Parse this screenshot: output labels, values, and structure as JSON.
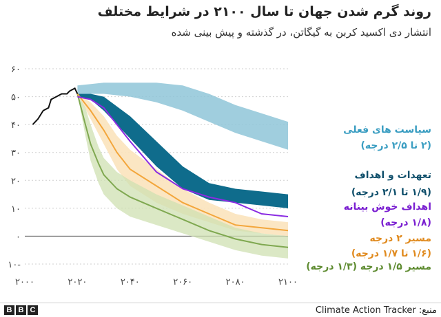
{
  "title": "روند گرم شدن جهان تا سال ۲۱۰۰ در شرایط مختلف",
  "subtitle": "انتشار دی اکسید کربن به گیگاتن، در گذشته و پیش بینی شده",
  "footer": {
    "logo": "BBC",
    "source": "Climate Action Tracker :منبع"
  },
  "colors": {
    "historical": "#111111",
    "current_policies": "#8fc6d8",
    "pledges": "#0f6c8c",
    "optimistic": "#8a2be2",
    "path_2c": "#f3a63b",
    "path_2c_band": "#fbe3bd",
    "path_15c": "#7fa850",
    "path_15c_band": "#cfe0b2"
  },
  "chart_data": {
    "type": "area",
    "title": "روند گرم شدن جهان تا سال ۲۱۰۰ در شرایط مختلف",
    "subtitle": "انتشار دی اکسید کربن به گیگاتن، در گذشته و پیش بینی شده",
    "x_range": [
      2000,
      2100
    ],
    "y_range": [
      -10,
      60
    ],
    "x_ticks": [
      {
        "value": 2000,
        "label": "۲۰۰۰"
      },
      {
        "value": 2020,
        "label": "۲۰۲۰"
      },
      {
        "value": 2040,
        "label": "۲۰۴۰"
      },
      {
        "value": 2060,
        "label": "۲۰۶۰"
      },
      {
        "value": 2080,
        "label": "۲۰۸۰"
      },
      {
        "value": 2100,
        "label": "۲۱۰۰"
      }
    ],
    "y_ticks": [
      {
        "value": 60,
        "label": "۶۰"
      },
      {
        "value": 50,
        "label": "۵۰"
      },
      {
        "value": 40,
        "label": "۴۰"
      },
      {
        "value": 30,
        "label": "۳۰"
      },
      {
        "value": 20,
        "label": "۲۰"
      },
      {
        "value": 10,
        "label": "۱۰"
      },
      {
        "value": 0,
        "label": "۰"
      },
      {
        "value": -10,
        "label": "۱۰-"
      }
    ],
    "historical": {
      "x": [
        2003,
        2005,
        2007,
        2009,
        2010,
        2012,
        2014,
        2016,
        2017,
        2019,
        2020
      ],
      "y": [
        40,
        42,
        45,
        46,
        49,
        50,
        51,
        51,
        52,
        53,
        51
      ]
    },
    "series": [
      {
        "name": "سیاست های فعلی",
        "sublabel": "(۲ تا ۲/۵ درجه)",
        "kind": "band",
        "x": [
          2020,
          2030,
          2040,
          2050,
          2060,
          2070,
          2080,
          2090,
          2100
        ],
        "low": [
          51,
          51,
          50,
          48,
          45,
          41,
          37,
          34,
          31
        ],
        "high": [
          54,
          55,
          55,
          55,
          54,
          51,
          47,
          44,
          41
        ]
      },
      {
        "name": "تعهدات و اهداف",
        "sublabel": "(۱/۹ تا ۲/۱ درجه)",
        "kind": "band",
        "x": [
          2020,
          2025,
          2030,
          2040,
          2050,
          2060,
          2070,
          2080,
          2090,
          2100
        ],
        "low": [
          50,
          49,
          45,
          35,
          25,
          17,
          13,
          12,
          11,
          10
        ],
        "high": [
          51,
          51,
          50,
          43,
          34,
          25,
          19,
          17,
          16,
          15
        ]
      },
      {
        "name": "اهداف خوش بینانه",
        "sublabel": "(۱/۸ درجه)",
        "kind": "line",
        "x": [
          2020,
          2025,
          2030,
          2040,
          2050,
          2060,
          2070,
          2080,
          2090,
          2100
        ],
        "y": [
          50,
          49,
          46,
          34,
          23,
          17,
          14,
          12,
          8,
          7
        ]
      },
      {
        "name": "مسیر ۲ درجه",
        "sublabel": "(۱/۶ تا ۱/۷ درجه)",
        "kind": "line_band",
        "x": [
          2020,
          2025,
          2030,
          2035,
          2040,
          2050,
          2060,
          2070,
          2080,
          2090,
          2100
        ],
        "y": [
          51,
          45,
          38,
          30,
          24,
          18,
          12,
          8,
          4,
          3,
          2
        ],
        "low": [
          51,
          42,
          33,
          24,
          18,
          12,
          8,
          5,
          2,
          1,
          0
        ],
        "high": [
          51,
          48,
          43,
          36,
          31,
          24,
          17,
          12,
          8,
          6,
          5
        ]
      },
      {
        "name": "مسیر ۱/۵ درجه",
        "sublabel": "(۱/۳ درجه)",
        "kind": "line_band",
        "x": [
          2020,
          2023,
          2025,
          2028,
          2030,
          2035,
          2040,
          2050,
          2060,
          2070,
          2080,
          2090,
          2100
        ],
        "y": [
          51,
          40,
          33,
          26,
          22,
          17,
          14,
          10,
          6,
          2,
          -1,
          -3,
          -4
        ],
        "low": [
          51,
          36,
          27,
          19,
          15,
          10,
          7,
          4,
          1,
          -2,
          -5,
          -7,
          -8
        ],
        "high": [
          51,
          46,
          40,
          32,
          28,
          23,
          20,
          15,
          11,
          7,
          3,
          1,
          0
        ]
      }
    ]
  }
}
